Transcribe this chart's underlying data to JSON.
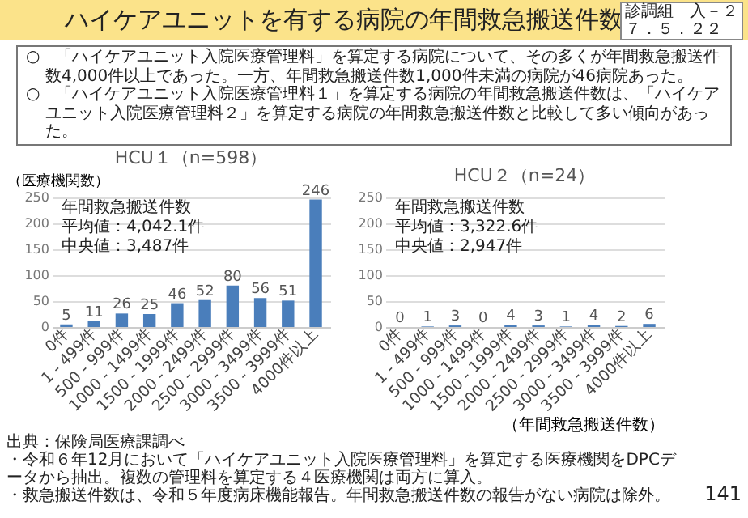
{
  "chart_data": [
    {
      "type": "bar",
      "title": "HCU１（n=598）",
      "ylabel": "（医療機関数）",
      "categories": [
        "0件",
        "1 - 499件",
        "500 - 999件",
        "1000 - 1499件",
        "1500 - 1999件",
        "2000 - 2499件",
        "2500 - 2999件",
        "3000 - 3499件",
        "3500 - 3999件",
        "4000件以上"
      ],
      "values": [
        5,
        11,
        26,
        25,
        46,
        52,
        80,
        56,
        51,
        246
      ],
      "color": "#4a7ebb",
      "ylim": [
        0,
        250
      ],
      "yticks": [
        0,
        50,
        100,
        150,
        200,
        250
      ],
      "grid": "y",
      "data_labels": true,
      "annotations": [
        "年間救急搬送件数",
        "平均値：4,042.1件",
        "中央値：3,487件",
        "ハイケアユニットを有する病院の年間救急搬送件数",
        "診調組　入－２",
        "７．５．２２",
        "○　「ハイケアユニット入院医療管理料」を算定する病院について、その多くが年間救急搬送件数4,000件以上であった。一方、年間救急搬送件数1,000件未満の病院が46病院あった。",
        "○　「ハイケアユニット入院医療管理料１」を算定する病院の年間救急搬送件数は、「ハイケアユニット入院医療管理料２」を算定する病院の年間救急搬送件数と比較して多い傾向があった。",
        "出典：保険局医療課調べ",
        "・令和６年12月において「ハイケアユニット入院医療管理料」を算定する医療機関をDPCデータから抽出。複数の管理料を算定する４医療機関は両方に算入。",
        "・救急搬送件数は、令和５年度病床機能報告。年間救急搬送件数の報告がない病院は除外。",
        "141"
      ]
    },
    {
      "type": "bar",
      "title": "HCU２（n=24）",
      "xlabel": "（年間救急搬送件数）",
      "categories": [
        "0件",
        "1 - 499件",
        "500 - 999件",
        "1000 - 1499件",
        "1500 - 1999件",
        "2000 - 2499件",
        "2500 - 2999件",
        "3000 - 3499件",
        "3500 - 3999件",
        "4000件以上"
      ],
      "values": [
        0,
        1,
        3,
        0,
        4,
        3,
        1,
        4,
        2,
        6
      ],
      "color": "#4a7ebb",
      "ylim": [
        0,
        250
      ],
      "yticks": [
        0,
        50,
        100,
        150,
        200,
        250
      ],
      "grid": "y",
      "data_labels": true,
      "annotations": [
        "年間救急搬送件数",
        "平均値：3,322.6件",
        "中央値：2,947件"
      ]
    }
  ]
}
